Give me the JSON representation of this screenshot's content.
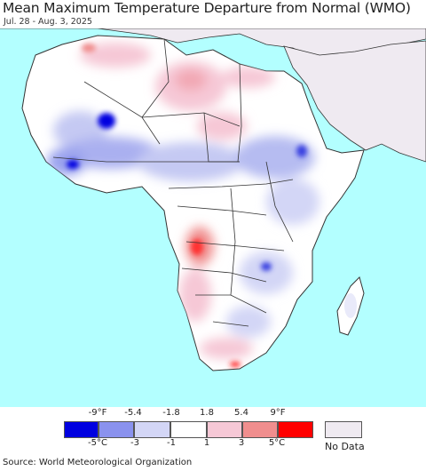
{
  "title": "Mean Maximum Temperature Departure from Normal (WMO)",
  "subtitle": "Jul. 28 - Aug. 3, 2025",
  "source": "Source: World Meteorological Organization",
  "legend": {
    "fahrenheit_ticks": [
      "-9°F",
      "-5.4",
      "-1.8",
      "1.8",
      "5.4",
      "9°F"
    ],
    "celsius_ticks": [
      "-5°C",
      "-3",
      "-1",
      "1",
      "3",
      "5°C"
    ],
    "swatch_colors": [
      "#0000e0",
      "#8a92ee",
      "#d3d6f6",
      "#ffffff",
      "#f6c8d6",
      "#f08e8e",
      "#ff0000"
    ],
    "no_data_label": "No Data",
    "no_data_color": "#efeaf1"
  },
  "colors": {
    "ocean": "#b3ffff",
    "no_data_land": "#efeaf1",
    "border": "#333333"
  }
}
